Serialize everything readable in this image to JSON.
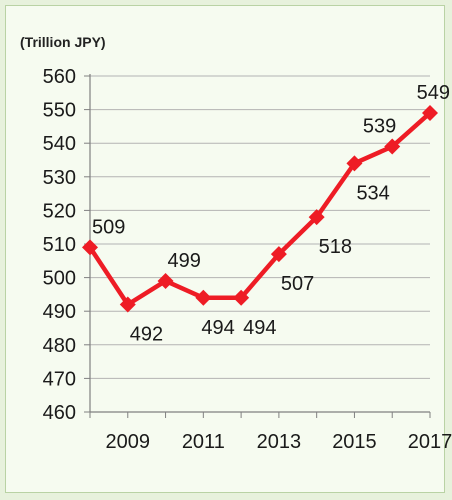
{
  "chart_data": {
    "type": "line",
    "unit_label": "(Trillion JPY)",
    "x": [
      2008,
      2009,
      2010,
      2011,
      2012,
      2013,
      2014,
      2015,
      2016,
      2017
    ],
    "x_tick_labels": [
      "2009",
      "2011",
      "2013",
      "2015",
      "2017"
    ],
    "y_tick_labels": [
      "560",
      "550",
      "540",
      "530",
      "520",
      "510",
      "500",
      "490",
      "480",
      "470",
      "460"
    ],
    "series": [
      {
        "values": [
          509,
          492,
          499,
          494,
          494,
          507,
          518,
          534,
          539,
          549
        ]
      }
    ],
    "data_labels": [
      "509",
      "492",
      "499",
      "494",
      "494",
      "507",
      "518",
      "534",
      "539",
      "549"
    ],
    "ylim": [
      460,
      560
    ],
    "grid": true,
    "line_color": "#ee1c25",
    "marker": "diamond"
  }
}
